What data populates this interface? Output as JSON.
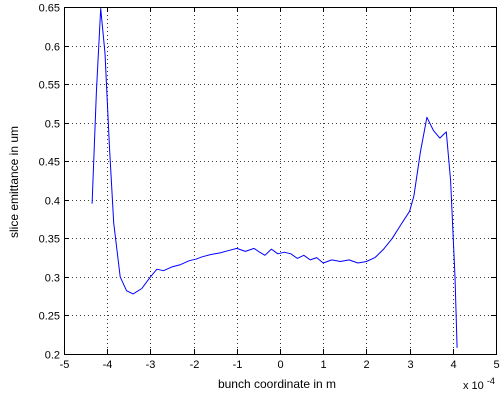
{
  "chart_data": {
    "type": "line",
    "xlabel": "bunch coordinate in m",
    "ylabel": "slice emittance in um",
    "x_multiplier_label": "x 10",
    "x_multiplier_exponent": "-4",
    "xlim": [
      -5,
      5
    ],
    "ylim": [
      0.2,
      0.65
    ],
    "grid": true,
    "x_ticks": [
      -5,
      -4,
      -3,
      -2,
      -1,
      0,
      1,
      2,
      3,
      4,
      5
    ],
    "x_tick_labels": [
      "-5",
      "-4",
      "-3",
      "-2",
      "-1",
      "0",
      "1",
      "2",
      "3",
      "4",
      "5"
    ],
    "y_ticks": [
      0.2,
      0.25,
      0.3,
      0.35,
      0.4,
      0.45,
      0.5,
      0.55,
      0.6,
      0.65
    ],
    "y_tick_labels": [
      "0.2",
      "0.25",
      "0.3",
      "0.35",
      "0.4",
      "0.45",
      "0.5",
      "0.55",
      "0.6",
      "0.65"
    ],
    "series": [
      {
        "color": "#0000ff",
        "x": [
          -4.35,
          -4.25,
          -4.15,
          -4.05,
          -3.95,
          -3.85,
          -3.7,
          -3.55,
          -3.4,
          -3.2,
          -3.0,
          -2.85,
          -2.7,
          -2.5,
          -2.3,
          -2.1,
          -1.95,
          -1.8,
          -1.6,
          -1.4,
          -1.2,
          -1.0,
          -0.8,
          -0.6,
          -0.5,
          -0.35,
          -0.2,
          -0.05,
          0.1,
          0.25,
          0.4,
          0.55,
          0.7,
          0.85,
          1.0,
          1.2,
          1.4,
          1.6,
          1.8,
          2.0,
          2.2,
          2.4,
          2.6,
          2.8,
          3.0,
          3.1,
          3.25,
          3.4,
          3.55,
          3.7,
          3.85,
          3.95,
          4.05,
          4.1
        ],
        "y": [
          0.395,
          0.54,
          0.648,
          0.59,
          0.47,
          0.37,
          0.3,
          0.282,
          0.278,
          0.285,
          0.3,
          0.31,
          0.308,
          0.313,
          0.316,
          0.321,
          0.323,
          0.326,
          0.329,
          0.331,
          0.334,
          0.337,
          0.333,
          0.337,
          0.333,
          0.328,
          0.336,
          0.33,
          0.332,
          0.33,
          0.324,
          0.328,
          0.322,
          0.325,
          0.318,
          0.322,
          0.32,
          0.322,
          0.318,
          0.32,
          0.325,
          0.336,
          0.35,
          0.368,
          0.385,
          0.405,
          0.462,
          0.507,
          0.49,
          0.48,
          0.488,
          0.425,
          0.3,
          0.208
        ]
      }
    ]
  }
}
